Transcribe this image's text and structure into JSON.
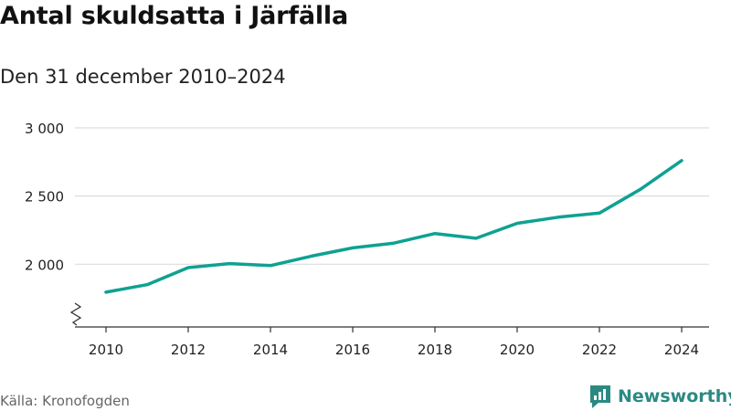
{
  "chart_data": {
    "type": "line",
    "title": "Antal skuldsatta i Järfälla",
    "subtitle": "Den 31 december 2010–2024",
    "x": [
      2010,
      2011,
      2012,
      2013,
      2014,
      2015,
      2016,
      2017,
      2018,
      2019,
      2020,
      2021,
      2022,
      2023,
      2024
    ],
    "values": [
      1795,
      1850,
      1975,
      2005,
      1990,
      2060,
      2120,
      2155,
      2225,
      2190,
      2300,
      2345,
      2375,
      2550,
      2760
    ],
    "xticks": [
      "2010",
      "2012",
      "2014",
      "2016",
      "2018",
      "2020",
      "2022",
      "2024"
    ],
    "yticks": [
      "2 000",
      "2 500",
      "3 000"
    ],
    "ytick_values": [
      2000,
      2500,
      3000
    ],
    "ylim": [
      1540,
      3000
    ],
    "xlim": [
      2010,
      2024
    ],
    "axis_break": true,
    "line_color": "#0fa192",
    "grid": true,
    "xlabel": "",
    "ylabel": ""
  },
  "source": "Källa: Kronofogden",
  "brand": {
    "name": "Newsworthy",
    "color": "#2a8a82"
  }
}
